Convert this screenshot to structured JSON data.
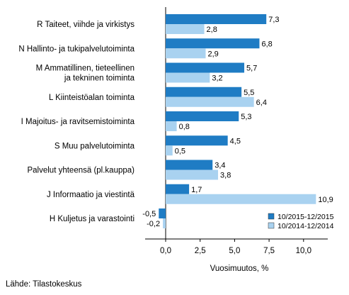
{
  "chart_data": {
    "type": "bar",
    "orientation": "horizontal",
    "categories": [
      [
        "R Taiteet, viihde ja virkistys"
      ],
      [
        "N Hallinto- ja tukipalvelutoiminta"
      ],
      [
        "M Ammatillinen, tieteellinen",
        "ja tekninen toiminta"
      ],
      [
        "L Kiinteistöalan toiminta"
      ],
      [
        "I Majoitus- ja ravitsemistoiminta"
      ],
      [
        "S Muu palvelutoiminta"
      ],
      [
        "Palvelut yhteensä (pl.kauppa)"
      ],
      [
        "J Informaatio ja viestintä"
      ],
      [
        "H Kuljetus ja varastointi"
      ]
    ],
    "series": [
      {
        "name": "10/2015-12/2015",
        "color": "#1f7cc4",
        "values": [
          7.3,
          6.8,
          5.7,
          5.5,
          5.3,
          4.5,
          3.4,
          1.7,
          -0.5
        ],
        "labels": [
          "7,3",
          "6,8",
          "5,7",
          "5,5",
          "5,3",
          "4,5",
          "3,4",
          "1,7",
          "-0,5"
        ]
      },
      {
        "name": "10/2014-12/2014",
        "color": "#a9d2f0",
        "values": [
          2.8,
          2.9,
          3.2,
          6.4,
          0.8,
          0.5,
          3.8,
          10.9,
          -0.2
        ],
        "labels": [
          "2,8",
          "2,9",
          "3,2",
          "6,4",
          "0,8",
          "0,5",
          "3,8",
          "10,9",
          "-0,2"
        ]
      }
    ],
    "xlim": [
      -1.5,
      11.0
    ],
    "xticks": [
      0,
      2.5,
      5.0,
      7.5,
      10.0
    ],
    "xtick_labels": [
      "0,0",
      "2,5",
      "5,0",
      "7,5",
      "10,0"
    ],
    "xlabel": "Vuosimuutos, %",
    "grid": false,
    "legend_position": "bottom-right"
  },
  "source": "Lähde: Tilastokeskus"
}
